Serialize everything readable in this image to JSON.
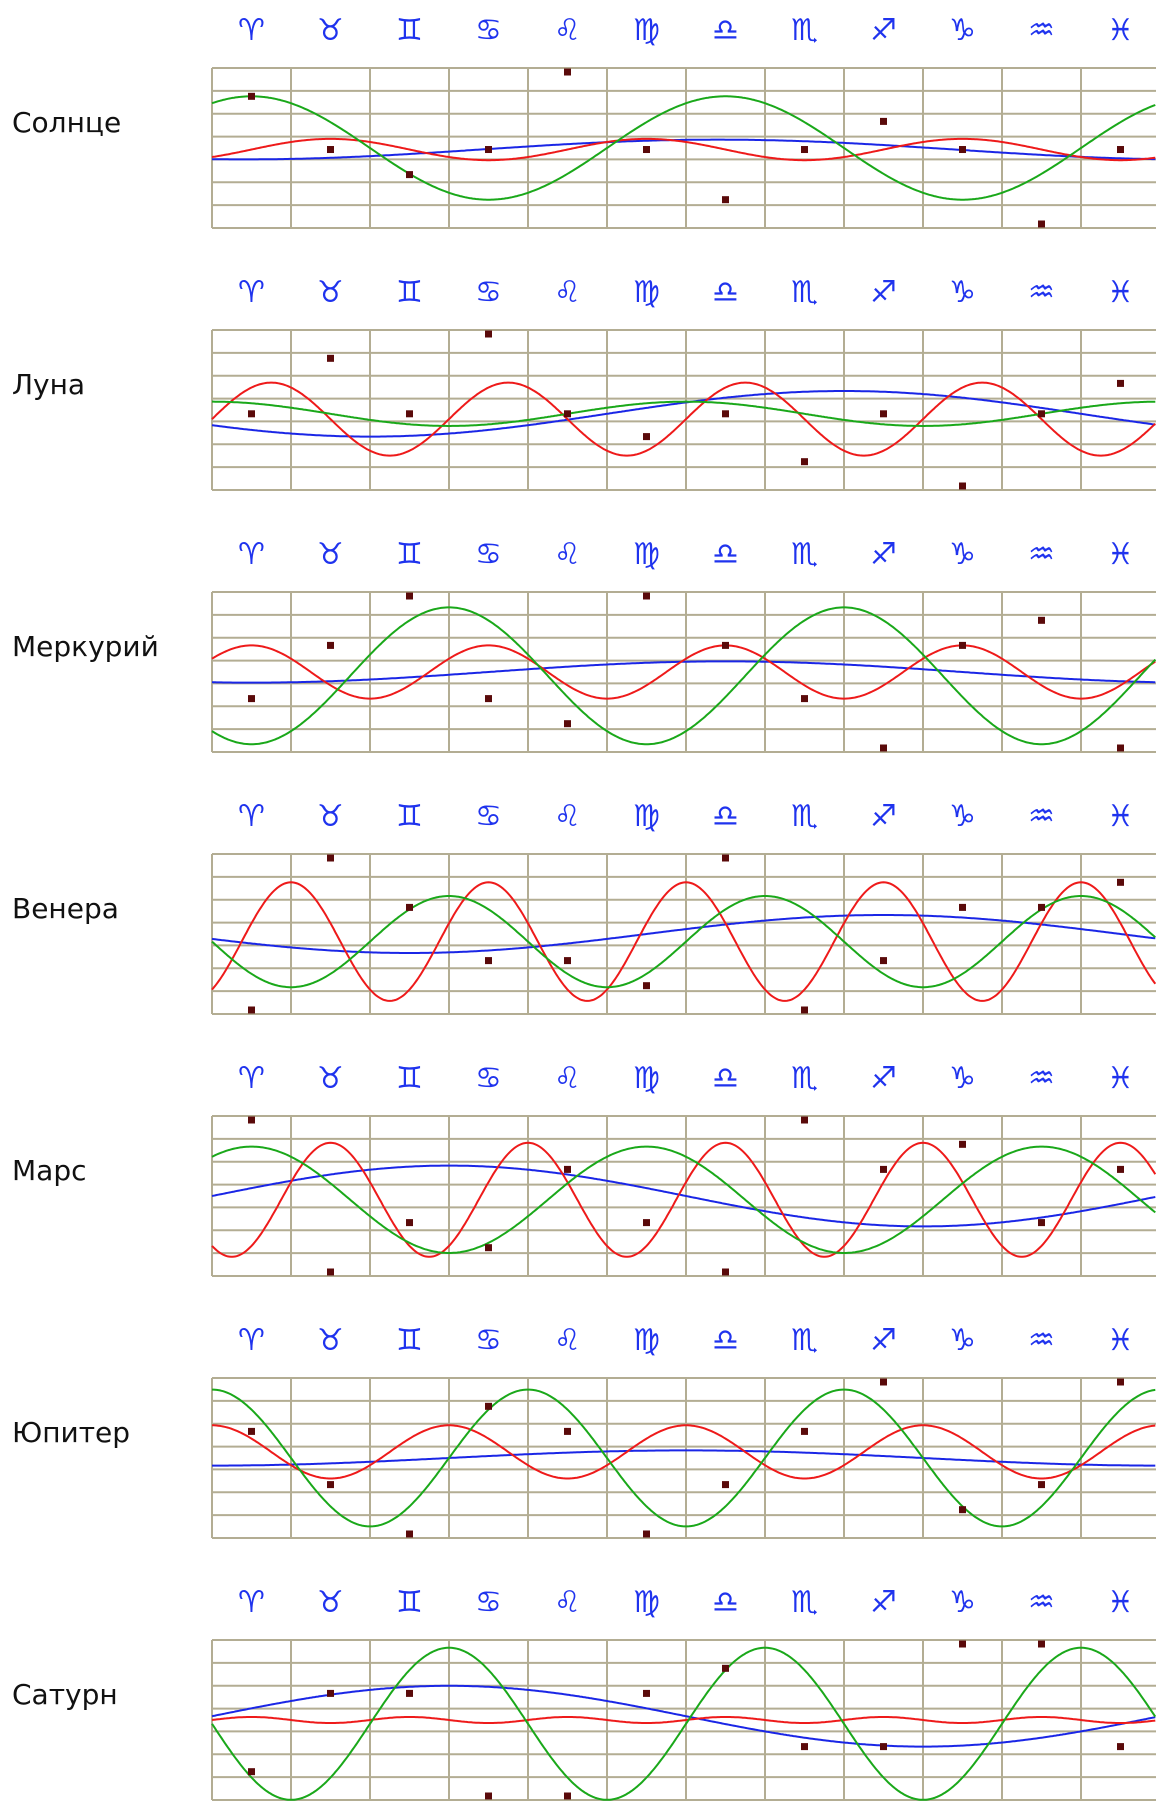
{
  "colors": {
    "glyph": "#1f33ee",
    "grid": "#b3ad93",
    "marker": "#5a0a0a",
    "series": {
      "blue": "#1a26e6",
      "red": "#ee1a1a",
      "green": "#1aa81a"
    }
  },
  "chart_data": {
    "type": "line",
    "x_categories": [
      "♈",
      "♉",
      "♊",
      "♋",
      "♌",
      "♍",
      "♎",
      "♏",
      "♐",
      "♑",
      "♒",
      "♓"
    ],
    "grid": true,
    "charts": [
      {
        "label": "Солнце",
        "series": [
          {
            "color": "blue",
            "period": 12,
            "amplitude": 0.13,
            "phase": 6.4,
            "offset": -0.02
          },
          {
            "color": "red",
            "period": 4,
            "amplitude": 0.14,
            "phase": 1.5,
            "offset": -0.02
          },
          {
            "color": "green",
            "period": 6,
            "amplitude": 0.68,
            "phase": 0.5,
            "offset": 0
          }
        ],
        "markers": [
          [
            0.5,
            0.68
          ],
          [
            1.5,
            -0.02
          ],
          [
            2.5,
            -0.35
          ],
          [
            3.5,
            -0.02
          ],
          [
            4.5,
            1.0
          ],
          [
            5.5,
            -0.02
          ],
          [
            6.5,
            -0.68
          ],
          [
            7.5,
            -0.02
          ],
          [
            8.5,
            0.35
          ],
          [
            9.5,
            -0.02
          ],
          [
            10.5,
            -1.0
          ],
          [
            11.5,
            -0.02
          ]
        ]
      },
      {
        "label": "Луна",
        "series": [
          {
            "color": "blue",
            "period": 12,
            "amplitude": 0.3,
            "phase": 8.0,
            "offset": -0.05
          },
          {
            "color": "red",
            "period": 3,
            "amplitude": 0.48,
            "phase": 0.75,
            "offset": -0.12
          },
          {
            "color": "green",
            "period": 6,
            "amplitude": 0.16,
            "phase": 6.0,
            "offset": -0.05
          }
        ],
        "markers": [
          [
            0.5,
            -0.05
          ],
          [
            1.5,
            0.68
          ],
          [
            2.5,
            -0.05
          ],
          [
            3.5,
            1.0
          ],
          [
            4.5,
            -0.05
          ],
          [
            5.5,
            -0.35
          ],
          [
            6.5,
            -0.05
          ],
          [
            7.5,
            -0.68
          ],
          [
            8.5,
            -0.05
          ],
          [
            9.5,
            -1.0
          ],
          [
            10.5,
            -0.05
          ],
          [
            11.5,
            0.35
          ]
        ]
      },
      {
        "label": "Меркурий",
        "series": [
          {
            "color": "blue",
            "period": 12,
            "amplitude": 0.14,
            "phase": 6.5,
            "offset": 0
          },
          {
            "color": "red",
            "period": 3,
            "amplitude": 0.35,
            "phase": 0.5,
            "offset": 0
          },
          {
            "color": "green",
            "period": 5,
            "amplitude": 0.9,
            "phase": 3.0,
            "offset": -0.05
          }
        ],
        "markers": [
          [
            0.5,
            -0.35
          ],
          [
            1.5,
            0.35
          ],
          [
            2.5,
            1.0
          ],
          [
            3.5,
            -0.35
          ],
          [
            4.5,
            -0.68
          ],
          [
            5.5,
            1.0
          ],
          [
            6.5,
            0.35
          ],
          [
            7.5,
            -0.35
          ],
          [
            8.5,
            -1.0
          ],
          [
            9.5,
            0.35
          ],
          [
            10.5,
            0.68
          ],
          [
            11.5,
            -1.0
          ]
        ]
      },
      {
        "label": "Венера",
        "series": [
          {
            "color": "blue",
            "period": 12,
            "amplitude": 0.25,
            "phase": 8.5,
            "offset": 0
          },
          {
            "color": "red",
            "period": 2.5,
            "amplitude": 0.78,
            "phase": 1.0,
            "offset": -0.1
          },
          {
            "color": "green",
            "period": 4,
            "amplitude": 0.6,
            "phase": 3.0,
            "offset": -0.1
          }
        ],
        "markers": [
          [
            0.5,
            -1.0
          ],
          [
            1.5,
            1.0
          ],
          [
            2.5,
            0.35
          ],
          [
            3.5,
            -0.35
          ],
          [
            4.5,
            -0.35
          ],
          [
            5.5,
            -0.68
          ],
          [
            6.5,
            1.0
          ],
          [
            7.5,
            -1.0
          ],
          [
            8.5,
            -0.35
          ],
          [
            9.5,
            0.35
          ],
          [
            10.5,
            0.35
          ],
          [
            11.5,
            0.68
          ]
        ]
      },
      {
        "label": "Марс",
        "series": [
          {
            "color": "blue",
            "period": 12,
            "amplitude": 0.4,
            "phase": 3.0,
            "offset": 0
          },
          {
            "color": "red",
            "period": 2.5,
            "amplitude": 0.75,
            "phase": 1.5,
            "offset": -0.05
          },
          {
            "color": "green",
            "period": 5,
            "amplitude": 0.7,
            "phase": 0.5,
            "offset": -0.05
          }
        ],
        "markers": [
          [
            0.5,
            1.0
          ],
          [
            1.5,
            -1.0
          ],
          [
            2.5,
            -0.35
          ],
          [
            3.5,
            -0.68
          ],
          [
            4.5,
            0.35
          ],
          [
            5.5,
            -0.35
          ],
          [
            6.5,
            -1.0
          ],
          [
            7.5,
            1.0
          ],
          [
            8.5,
            0.35
          ],
          [
            9.5,
            0.68
          ],
          [
            10.5,
            -0.35
          ],
          [
            11.5,
            0.35
          ]
        ]
      },
      {
        "label": "Юпитер",
        "series": [
          {
            "color": "blue",
            "period": 12,
            "amplitude": 0.1,
            "phase": 6.0,
            "offset": 0
          },
          {
            "color": "red",
            "period": 3.0,
            "amplitude": 0.35,
            "phase": 0.0,
            "offset": 0.08
          },
          {
            "color": "green",
            "period": 4,
            "amplitude": 0.9,
            "phase": 0.0,
            "offset": 0.0
          }
        ],
        "markers": [
          [
            0.5,
            0.35
          ],
          [
            1.5,
            -0.35
          ],
          [
            2.5,
            -1.0
          ],
          [
            3.5,
            0.68
          ],
          [
            4.5,
            0.35
          ],
          [
            5.5,
            -1.0
          ],
          [
            6.5,
            -0.35
          ],
          [
            7.5,
            0.35
          ],
          [
            8.5,
            1.0
          ],
          [
            9.5,
            -0.68
          ],
          [
            10.5,
            -0.35
          ],
          [
            11.5,
            1.0
          ]
        ]
      },
      {
        "label": "Сатурн",
        "series": [
          {
            "color": "blue",
            "period": 12,
            "amplitude": 0.4,
            "phase": 3.0,
            "offset": 0.05
          },
          {
            "color": "red",
            "period": 2.0,
            "amplitude": 0.04,
            "phase": 0.5,
            "offset": 0.0
          },
          {
            "color": "green",
            "period": 4,
            "amplitude": 1.0,
            "phase": 3.0,
            "offset": -0.05
          }
        ],
        "markers": [
          [
            0.5,
            -0.68
          ],
          [
            1.5,
            0.35
          ],
          [
            2.5,
            0.35
          ],
          [
            3.5,
            -1.0
          ],
          [
            4.5,
            -1.0
          ],
          [
            5.5,
            0.35
          ],
          [
            6.5,
            0.68
          ],
          [
            7.5,
            -0.35
          ],
          [
            8.5,
            -0.35
          ],
          [
            9.5,
            1.0
          ],
          [
            10.5,
            1.0
          ],
          [
            11.5,
            -0.35
          ]
        ]
      }
    ]
  }
}
